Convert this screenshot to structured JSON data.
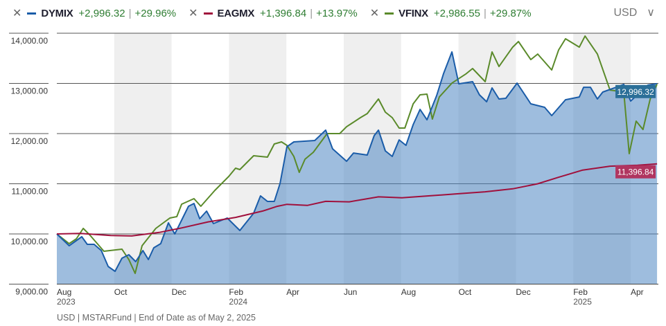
{
  "legend": [
    {
      "ticker": "DYMIX",
      "change": "+2,996.32",
      "pct": "+29.96%",
      "color": "#1a5ca8"
    },
    {
      "ticker": "EAGMX",
      "change": "+1,396.84",
      "pct": "+13.97%",
      "color": "#a0103c"
    },
    {
      "ticker": "VFINX",
      "change": "+2,986.55",
      "pct": "+29.87%",
      "color": "#5a8a2a"
    }
  ],
  "currency": "USD",
  "footer": "USD | MSTARFund | End of Date as of May 2, 2025",
  "chart_data": {
    "type": "line",
    "x_unit": "months since Aug 2023",
    "ylim": [
      9000,
      14000
    ],
    "xlim": [
      0,
      21
    ],
    "yticks": [
      {
        "v": 14000,
        "label": "14,000.00"
      },
      {
        "v": 13000,
        "label": "13,000.00"
      },
      {
        "v": 12000,
        "label": "12,000.00"
      },
      {
        "v": 11000,
        "label": "11,000.00"
      },
      {
        "v": 10000,
        "label": "10,000.00"
      },
      {
        "v": 9000,
        "label": "9,000.00"
      }
    ],
    "xticks": [
      {
        "m": 0,
        "label": "Aug",
        "year": "2023"
      },
      {
        "m": 2,
        "label": "Oct"
      },
      {
        "m": 4,
        "label": "Dec"
      },
      {
        "m": 6,
        "label": "Feb",
        "year": "2024"
      },
      {
        "m": 8,
        "label": "Apr"
      },
      {
        "m": 10,
        "label": "Jun"
      },
      {
        "m": 12,
        "label": "Aug"
      },
      {
        "m": 14,
        "label": "Oct"
      },
      {
        "m": 16,
        "label": "Dec"
      },
      {
        "m": 18,
        "label": "Feb",
        "year": "2025"
      },
      {
        "m": 20,
        "label": "Apr"
      }
    ],
    "shaded_bands": [
      [
        2,
        4
      ],
      [
        6,
        8
      ],
      [
        10,
        12
      ],
      [
        14,
        16
      ],
      [
        18,
        20
      ]
    ],
    "series": [
      {
        "name": "DYMIX",
        "color": "#1a5ca8",
        "area": true,
        "end_label": "12,996.32",
        "label_bg": "#2b6f98",
        "points": [
          [
            0,
            10000
          ],
          [
            0.43,
            9766
          ],
          [
            0.87,
            9945
          ],
          [
            1.06,
            9793
          ],
          [
            1.3,
            9793
          ],
          [
            1.55,
            9669
          ],
          [
            1.79,
            9352
          ],
          [
            2.03,
            9255
          ],
          [
            2.27,
            9517
          ],
          [
            2.51,
            9586
          ],
          [
            2.75,
            9448
          ],
          [
            3,
            9669
          ],
          [
            3.19,
            9490
          ],
          [
            3.38,
            9724
          ],
          [
            3.62,
            9807
          ],
          [
            3.89,
            10221
          ],
          [
            4.11,
            10000
          ],
          [
            4.35,
            10276
          ],
          [
            4.59,
            10552
          ],
          [
            4.78,
            10607
          ],
          [
            4.98,
            10303
          ],
          [
            5.22,
            10455
          ],
          [
            5.46,
            10207
          ],
          [
            5.94,
            10317
          ],
          [
            6.38,
            10069
          ],
          [
            6.86,
            10414
          ],
          [
            7.1,
            10759
          ],
          [
            7.34,
            10648
          ],
          [
            7.58,
            10648
          ],
          [
            7.78,
            11007
          ],
          [
            8.02,
            11738
          ],
          [
            8.26,
            11834
          ],
          [
            8.99,
            11862
          ],
          [
            9.37,
            12069
          ],
          [
            9.61,
            11696
          ],
          [
            10.1,
            11448
          ],
          [
            10.34,
            11613
          ],
          [
            10.82,
            11572
          ],
          [
            11.06,
            11958
          ],
          [
            11.21,
            12069
          ],
          [
            11.45,
            11655
          ],
          [
            11.69,
            11545
          ],
          [
            11.93,
            11875
          ],
          [
            12.17,
            11765
          ],
          [
            12.42,
            12179
          ],
          [
            12.66,
            12482
          ],
          [
            12.9,
            12275
          ],
          [
            13.24,
            12758
          ],
          [
            13.48,
            13199
          ],
          [
            13.77,
            13627
          ],
          [
            14.01,
            12992
          ],
          [
            14.49,
            13034
          ],
          [
            14.73,
            12772
          ],
          [
            14.98,
            12634
          ],
          [
            15.17,
            12910
          ],
          [
            15.41,
            12689
          ],
          [
            15.65,
            12703
          ],
          [
            16.04,
            13006
          ],
          [
            16.52,
            12593
          ],
          [
            17,
            12524
          ],
          [
            17.25,
            12358
          ],
          [
            17.73,
            12675
          ],
          [
            18.21,
            12730
          ],
          [
            18.36,
            12923
          ],
          [
            18.6,
            12923
          ],
          [
            18.84,
            12689
          ],
          [
            19.03,
            12827
          ],
          [
            19.76,
            12979
          ],
          [
            20,
            12648
          ],
          [
            20.6,
            12965
          ],
          [
            20.92,
            12996.32
          ]
        ]
      },
      {
        "name": "EAGMX",
        "color": "#a0103c",
        "area": false,
        "end_label": "11,396.84",
        "label_bg": "#b03560",
        "points": [
          [
            0,
            10000
          ],
          [
            0.82,
            10010
          ],
          [
            1.88,
            9970
          ],
          [
            2.61,
            9960
          ],
          [
            3.57,
            10030
          ],
          [
            4.35,
            10120
          ],
          [
            5.27,
            10240
          ],
          [
            6.23,
            10330
          ],
          [
            7.2,
            10460
          ],
          [
            7.68,
            10550
          ],
          [
            8.02,
            10590
          ],
          [
            8.74,
            10570
          ],
          [
            9.37,
            10650
          ],
          [
            10.19,
            10640
          ],
          [
            11.21,
            10740
          ],
          [
            12.03,
            10720
          ],
          [
            13,
            10760
          ],
          [
            13.96,
            10800
          ],
          [
            14.93,
            10840
          ],
          [
            15.89,
            10900
          ],
          [
            16.76,
            11000
          ],
          [
            17.49,
            11130
          ],
          [
            18.31,
            11270
          ],
          [
            19.28,
            11350
          ],
          [
            20.24,
            11370
          ],
          [
            20.92,
            11396.84
          ]
        ]
      },
      {
        "name": "VFINX",
        "color": "#5a8a2a",
        "area": false,
        "points": [
          [
            0,
            10000
          ],
          [
            0.43,
            9807
          ],
          [
            0.68,
            9903
          ],
          [
            0.92,
            10110
          ],
          [
            1.16,
            9972
          ],
          [
            1.64,
            9655
          ],
          [
            2.27,
            9697
          ],
          [
            2.51,
            9490
          ],
          [
            2.73,
            9214
          ],
          [
            2.97,
            9766
          ],
          [
            3.45,
            10110
          ],
          [
            3.94,
            10317
          ],
          [
            4.18,
            10345
          ],
          [
            4.35,
            10593
          ],
          [
            4.78,
            10703
          ],
          [
            5.02,
            10552
          ],
          [
            5.51,
            10869
          ],
          [
            5.99,
            11145
          ],
          [
            6.23,
            11310
          ],
          [
            6.38,
            11283
          ],
          [
            6.86,
            11558
          ],
          [
            7.34,
            11531
          ],
          [
            7.58,
            11793
          ],
          [
            7.83,
            11834
          ],
          [
            8.02,
            11765
          ],
          [
            8.26,
            11545
          ],
          [
            8.45,
            11227
          ],
          [
            8.65,
            11489
          ],
          [
            8.94,
            11627
          ],
          [
            9.42,
            12000
          ],
          [
            9.86,
            12000
          ],
          [
            10.1,
            12137
          ],
          [
            10.58,
            12317
          ],
          [
            10.82,
            12399
          ],
          [
            11.21,
            12689
          ],
          [
            11.45,
            12427
          ],
          [
            11.69,
            12317
          ],
          [
            11.93,
            12110
          ],
          [
            12.13,
            12110
          ],
          [
            12.42,
            12593
          ],
          [
            12.66,
            12772
          ],
          [
            12.9,
            12786
          ],
          [
            13.09,
            12289
          ],
          [
            13.33,
            12730
          ],
          [
            13.77,
            13006
          ],
          [
            14.25,
            13185
          ],
          [
            14.49,
            13296
          ],
          [
            14.93,
            13034
          ],
          [
            15.17,
            13627
          ],
          [
            15.41,
            13337
          ],
          [
            15.89,
            13723
          ],
          [
            16.09,
            13834
          ],
          [
            16.52,
            13475
          ],
          [
            16.76,
            13585
          ],
          [
            17.25,
            13268
          ],
          [
            17.49,
            13668
          ],
          [
            17.73,
            13889
          ],
          [
            18.21,
            13723
          ],
          [
            18.41,
            13944
          ],
          [
            18.84,
            13585
          ],
          [
            19.28,
            12868
          ],
          [
            19.76,
            12827
          ],
          [
            19.95,
            11600
          ],
          [
            20.19,
            12248
          ],
          [
            20.43,
            12082
          ],
          [
            20.68,
            12689
          ],
          [
            20.92,
            12986.55
          ]
        ]
      }
    ]
  }
}
